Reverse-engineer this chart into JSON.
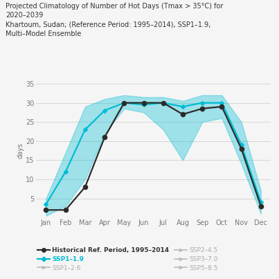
{
  "title_line1": "Projected Climatology of Number of Hot Days (Tmax > 35°C) for",
  "title_line2": "2020–2039",
  "subtitle_line1": "Khartoum, Sudan; (Reference Period: 1995–2014), SSP1–1.9,",
  "subtitle_line2": "Multi–Model Ensemble",
  "months": [
    "Jan",
    "Feb",
    "Mar",
    "Apr",
    "May",
    "Jun",
    "Jul",
    "Aug",
    "Sep",
    "Oct",
    "Nov",
    "Dec"
  ],
  "historical": [
    2,
    2,
    8,
    21,
    30,
    30,
    30,
    27,
    28.5,
    29,
    18,
    3
  ],
  "ssp1_9_mean": [
    3.5,
    12,
    23,
    28,
    30,
    29.5,
    30,
    29,
    30,
    30,
    19,
    4
  ],
  "ssp1_9_lower": [
    0.5,
    3,
    10,
    22,
    28.5,
    27.5,
    23,
    15,
    25,
    26,
    14,
    1
  ],
  "ssp1_9_upper": [
    5,
    17,
    29,
    31,
    32,
    31.5,
    31.5,
    30.5,
    32,
    32,
    25,
    7
  ],
  "ylim": [
    0,
    35
  ],
  "yticks": [
    0,
    5,
    10,
    15,
    20,
    25,
    30,
    35
  ],
  "ylabel": "days",
  "historical_color": "#2b2b2b",
  "ssp19_color": "#00bcd4",
  "ssp19_fill_color": "#00bcd4",
  "faded_color": "#bbbbbb",
  "background_color": "#f5f5f5",
  "legend_col1": [
    {
      "label": "Historical Ref. Period, 1995–2014",
      "color": "#2b2b2b",
      "bold": true
    },
    {
      "label": "SSP1–2.6",
      "color": "#bbbbbb",
      "bold": false
    },
    {
      "label": "SSP3–7.0",
      "color": "#bbbbbb",
      "bold": false
    }
  ],
  "legend_col2": [
    {
      "label": "SSP1–1.9",
      "color": "#00bcd4",
      "bold": true
    },
    {
      "label": "SSP2–4.5",
      "color": "#bbbbbb",
      "bold": false
    },
    {
      "label": "SSP5–8.5",
      "color": "#bbbbbb",
      "bold": false
    }
  ]
}
